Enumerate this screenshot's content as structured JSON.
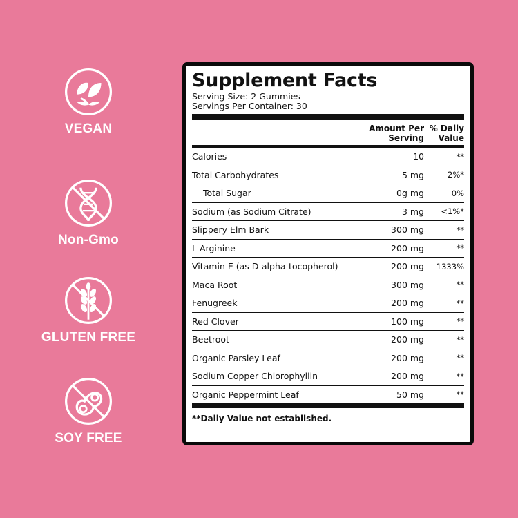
{
  "badges": [
    {
      "label": "VEGAN",
      "icon": "leaf-icon"
    },
    {
      "label": "Non-Gmo",
      "icon": "dna-crossed-icon"
    },
    {
      "label": "GLUTEN FREE",
      "icon": "wheat-crossed-icon"
    },
    {
      "label": "SOY FREE",
      "icon": "soybean-crossed-icon"
    }
  ],
  "facts": {
    "title": "Supplement Facts",
    "serving_size": "Serving Size: 2 Gummies",
    "servings_per_container": "Servings Per Container: 30",
    "col_amount_1": "Amount Per",
    "col_amount_2": "Serving",
    "col_dv_1": "% Daily",
    "col_dv_2": "Value",
    "rows": [
      {
        "name": "Calories",
        "amount": "10",
        "dv": "**"
      },
      {
        "name": "Total Carbohydrates",
        "amount": "5 mg",
        "dv": "2%*"
      },
      {
        "name": "Total Sugar",
        "amount": "0g mg",
        "dv": "0%"
      },
      {
        "name": "Sodium (as Sodium Citrate)",
        "amount": "3 mg",
        "dv": "<1%*"
      },
      {
        "name": "Slippery Elm Bark",
        "amount": "300 mg",
        "dv": "**"
      },
      {
        "name": "L-Arginine",
        "amount": "200 mg",
        "dv": "**"
      },
      {
        "name": "Vitamin E (as D-alpha-tocopherol)",
        "amount": "200 mg",
        "dv": "1333%"
      },
      {
        "name": "Maca Root",
        "amount": "300 mg",
        "dv": "**"
      },
      {
        "name": "Fenugreek",
        "amount": "200 mg",
        "dv": "**"
      },
      {
        "name": "Red Clover",
        "amount": "100 mg",
        "dv": "**"
      },
      {
        "name": "Beetroot",
        "amount": "200 mg",
        "dv": "**"
      },
      {
        "name": "Organic Parsley Leaf",
        "amount": "200 mg",
        "dv": "**"
      },
      {
        "name": "Sodium Copper Chlorophyllin",
        "amount": "200 mg",
        "dv": "**"
      },
      {
        "name": "Organic Peppermint Leaf",
        "amount": "50 mg",
        "dv": "**"
      }
    ],
    "footnote": "**Daily Value not established."
  },
  "colors": {
    "background": "#e97a9a",
    "panel": "#ffffff",
    "ink": "#111111"
  }
}
